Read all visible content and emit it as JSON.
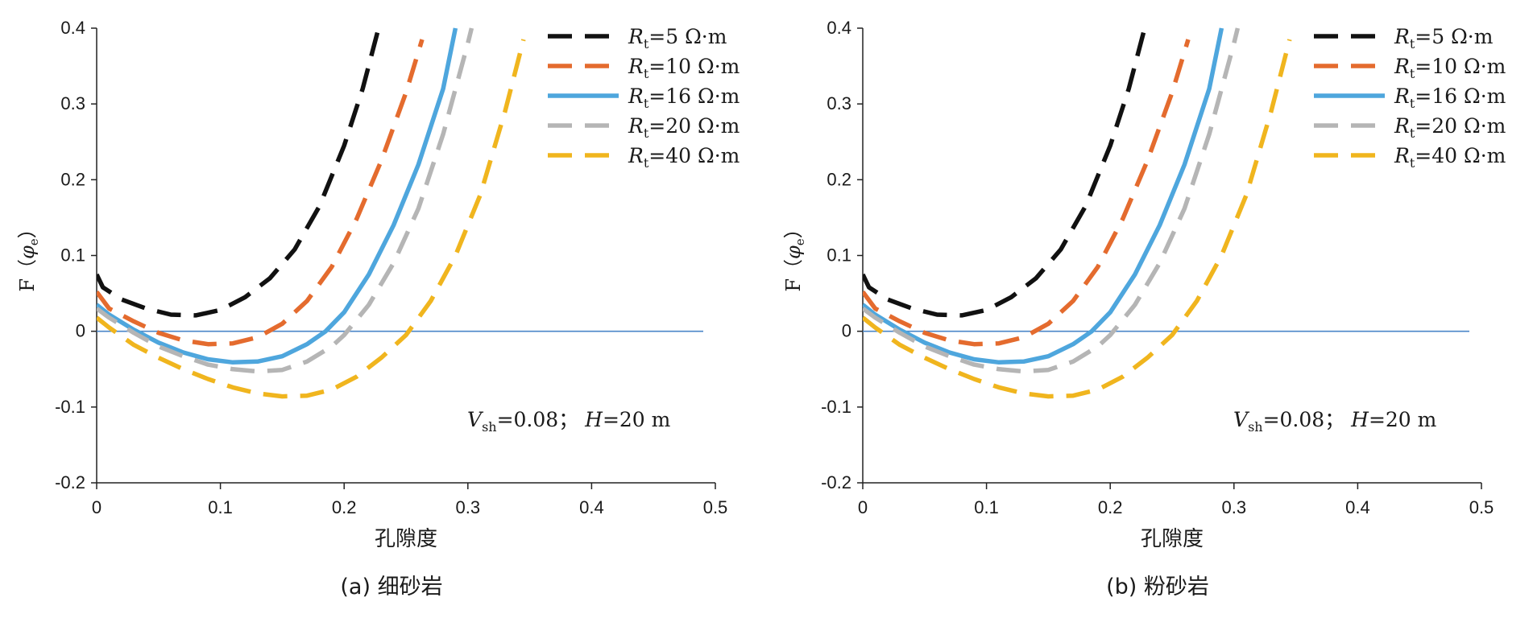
{
  "chart_data": [
    {
      "type": "line",
      "caption": "(a) 细砂岩",
      "xlabel": "孔隙度",
      "ylabel": "F（φe）",
      "xlim": [
        0,
        0.5
      ],
      "ylim": [
        -0.2,
        0.4
      ],
      "xticks": [
        "0",
        "0.1",
        "0.2",
        "0.3",
        "0.4",
        "0.5"
      ],
      "yticks": [
        "-0.2",
        "-0.1",
        "0",
        "0.1",
        "0.2",
        "0.3",
        "0.4"
      ],
      "annotation": "Vsh=0.08；H=20 m",
      "legend_position": "top-right",
      "reference_line": 0,
      "series": [
        {
          "name": "Rt=5 Ω·m",
          "color": "#111111",
          "dash": true,
          "points": [
            [
              0,
              0.075
            ],
            [
              0.005,
              0.058
            ],
            [
              0.02,
              0.042
            ],
            [
              0.04,
              0.03
            ],
            [
              0.06,
              0.022
            ],
            [
              0.08,
              0.021
            ],
            [
              0.1,
              0.028
            ],
            [
              0.12,
              0.045
            ],
            [
              0.14,
              0.07
            ],
            [
              0.16,
              0.108
            ],
            [
              0.18,
              0.165
            ],
            [
              0.2,
              0.245
            ],
            [
              0.215,
              0.32
            ],
            [
              0.227,
              0.395
            ]
          ]
        },
        {
          "name": "Rt=10 Ω·m",
          "color": "#e46b2e",
          "dash": true,
          "points": [
            [
              0,
              0.052
            ],
            [
              0.01,
              0.03
            ],
            [
              0.03,
              0.013
            ],
            [
              0.05,
              -0.002
            ],
            [
              0.07,
              -0.012
            ],
            [
              0.09,
              -0.017
            ],
            [
              0.11,
              -0.016
            ],
            [
              0.13,
              -0.008
            ],
            [
              0.15,
              0.01
            ],
            [
              0.17,
              0.04
            ],
            [
              0.19,
              0.085
            ],
            [
              0.21,
              0.148
            ],
            [
              0.23,
              0.225
            ],
            [
              0.25,
              0.315
            ],
            [
              0.263,
              0.385
            ]
          ]
        },
        {
          "name": "Rt=16 Ω·m",
          "color": "#4ea6dd",
          "dash": false,
          "points": [
            [
              0,
              0.035
            ],
            [
              0.01,
              0.022
            ],
            [
              0.03,
              0.002
            ],
            [
              0.05,
              -0.015
            ],
            [
              0.07,
              -0.028
            ],
            [
              0.09,
              -0.037
            ],
            [
              0.11,
              -0.041
            ],
            [
              0.13,
              -0.04
            ],
            [
              0.15,
              -0.033
            ],
            [
              0.17,
              -0.017
            ],
            [
              0.185,
              0.0
            ],
            [
              0.2,
              0.025
            ],
            [
              0.22,
              0.075
            ],
            [
              0.24,
              0.14
            ],
            [
              0.26,
              0.22
            ],
            [
              0.28,
              0.32
            ],
            [
              0.29,
              0.4
            ]
          ]
        },
        {
          "name": "Rt=20 Ω·m",
          "color": "#b5b5b5",
          "dash": true,
          "points": [
            [
              0,
              0.03
            ],
            [
              0.01,
              0.018
            ],
            [
              0.03,
              -0.002
            ],
            [
              0.05,
              -0.02
            ],
            [
              0.07,
              -0.033
            ],
            [
              0.09,
              -0.044
            ],
            [
              0.11,
              -0.05
            ],
            [
              0.13,
              -0.053
            ],
            [
              0.15,
              -0.051
            ],
            [
              0.17,
              -0.04
            ],
            [
              0.19,
              -0.02
            ],
            [
              0.2,
              -0.005
            ],
            [
              0.22,
              0.035
            ],
            [
              0.24,
              0.09
            ],
            [
              0.26,
              0.162
            ],
            [
              0.28,
              0.26
            ],
            [
              0.3,
              0.38
            ],
            [
              0.303,
              0.4
            ]
          ]
        },
        {
          "name": "Rt=40 Ω·m",
          "color": "#f0b51e",
          "dash": true,
          "points": [
            [
              0,
              0.018
            ],
            [
              0.01,
              0.005
            ],
            [
              0.03,
              -0.018
            ],
            [
              0.05,
              -0.035
            ],
            [
              0.07,
              -0.05
            ],
            [
              0.09,
              -0.063
            ],
            [
              0.11,
              -0.074
            ],
            [
              0.13,
              -0.082
            ],
            [
              0.15,
              -0.086
            ],
            [
              0.17,
              -0.085
            ],
            [
              0.19,
              -0.077
            ],
            [
              0.21,
              -0.06
            ],
            [
              0.23,
              -0.035
            ],
            [
              0.25,
              -0.005
            ],
            [
              0.27,
              0.04
            ],
            [
              0.29,
              0.1
            ],
            [
              0.31,
              0.18
            ],
            [
              0.33,
              0.29
            ],
            [
              0.345,
              0.385
            ]
          ]
        }
      ]
    },
    {
      "type": "line",
      "caption": "(b) 粉砂岩",
      "xlabel": "孔隙度",
      "ylabel": "F（φe）",
      "xlim": [
        0,
        0.5
      ],
      "ylim": [
        -0.2,
        0.4
      ],
      "xticks": [
        "0",
        "0.1",
        "0.2",
        "0.3",
        "0.4",
        "0.5"
      ],
      "yticks": [
        "-0.2",
        "-0.1",
        "0",
        "0.1",
        "0.2",
        "0.3",
        "0.4"
      ],
      "annotation": "Vsh=0.08；H=20 m",
      "legend_position": "top-right",
      "reference_line": 0,
      "series": [
        {
          "name": "Rt=5 Ω·m",
          "color": "#111111",
          "dash": true,
          "points": [
            [
              0,
              0.075
            ],
            [
              0.005,
              0.058
            ],
            [
              0.02,
              0.042
            ],
            [
              0.04,
              0.03
            ],
            [
              0.06,
              0.022
            ],
            [
              0.08,
              0.021
            ],
            [
              0.1,
              0.028
            ],
            [
              0.12,
              0.045
            ],
            [
              0.14,
              0.07
            ],
            [
              0.16,
              0.108
            ],
            [
              0.18,
              0.165
            ],
            [
              0.2,
              0.245
            ],
            [
              0.215,
              0.32
            ],
            [
              0.227,
              0.395
            ]
          ]
        },
        {
          "name": "Rt=10 Ω·m",
          "color": "#e46b2e",
          "dash": true,
          "points": [
            [
              0,
              0.052
            ],
            [
              0.01,
              0.03
            ],
            [
              0.03,
              0.013
            ],
            [
              0.05,
              -0.002
            ],
            [
              0.07,
              -0.012
            ],
            [
              0.09,
              -0.017
            ],
            [
              0.11,
              -0.016
            ],
            [
              0.13,
              -0.008
            ],
            [
              0.15,
              0.01
            ],
            [
              0.17,
              0.04
            ],
            [
              0.19,
              0.085
            ],
            [
              0.21,
              0.148
            ],
            [
              0.23,
              0.225
            ],
            [
              0.25,
              0.315
            ],
            [
              0.263,
              0.385
            ]
          ]
        },
        {
          "name": "Rt=16 Ω·m",
          "color": "#4ea6dd",
          "dash": false,
          "points": [
            [
              0,
              0.035
            ],
            [
              0.01,
              0.022
            ],
            [
              0.03,
              0.002
            ],
            [
              0.05,
              -0.015
            ],
            [
              0.07,
              -0.028
            ],
            [
              0.09,
              -0.037
            ],
            [
              0.11,
              -0.041
            ],
            [
              0.13,
              -0.04
            ],
            [
              0.15,
              -0.033
            ],
            [
              0.17,
              -0.017
            ],
            [
              0.185,
              0.0
            ],
            [
              0.2,
              0.025
            ],
            [
              0.22,
              0.075
            ],
            [
              0.24,
              0.14
            ],
            [
              0.26,
              0.22
            ],
            [
              0.28,
              0.32
            ],
            [
              0.29,
              0.4
            ]
          ]
        },
        {
          "name": "Rt=20 Ω·m",
          "color": "#b5b5b5",
          "dash": true,
          "points": [
            [
              0,
              0.03
            ],
            [
              0.01,
              0.018
            ],
            [
              0.03,
              -0.002
            ],
            [
              0.05,
              -0.02
            ],
            [
              0.07,
              -0.033
            ],
            [
              0.09,
              -0.044
            ],
            [
              0.11,
              -0.05
            ],
            [
              0.13,
              -0.053
            ],
            [
              0.15,
              -0.051
            ],
            [
              0.17,
              -0.04
            ],
            [
              0.19,
              -0.02
            ],
            [
              0.2,
              -0.005
            ],
            [
              0.22,
              0.035
            ],
            [
              0.24,
              0.09
            ],
            [
              0.26,
              0.162
            ],
            [
              0.28,
              0.26
            ],
            [
              0.3,
              0.38
            ],
            [
              0.303,
              0.4
            ]
          ]
        },
        {
          "name": "Rt=40 Ω·m",
          "color": "#f0b51e",
          "dash": true,
          "points": [
            [
              0,
              0.018
            ],
            [
              0.01,
              0.005
            ],
            [
              0.03,
              -0.018
            ],
            [
              0.05,
              -0.035
            ],
            [
              0.07,
              -0.05
            ],
            [
              0.09,
              -0.063
            ],
            [
              0.11,
              -0.074
            ],
            [
              0.13,
              -0.082
            ],
            [
              0.15,
              -0.086
            ],
            [
              0.17,
              -0.085
            ],
            [
              0.19,
              -0.077
            ],
            [
              0.21,
              -0.06
            ],
            [
              0.23,
              -0.035
            ],
            [
              0.25,
              -0.005
            ],
            [
              0.27,
              0.04
            ],
            [
              0.29,
              0.1
            ],
            [
              0.31,
              0.18
            ],
            [
              0.33,
              0.29
            ],
            [
              0.345,
              0.385
            ]
          ]
        }
      ]
    }
  ]
}
